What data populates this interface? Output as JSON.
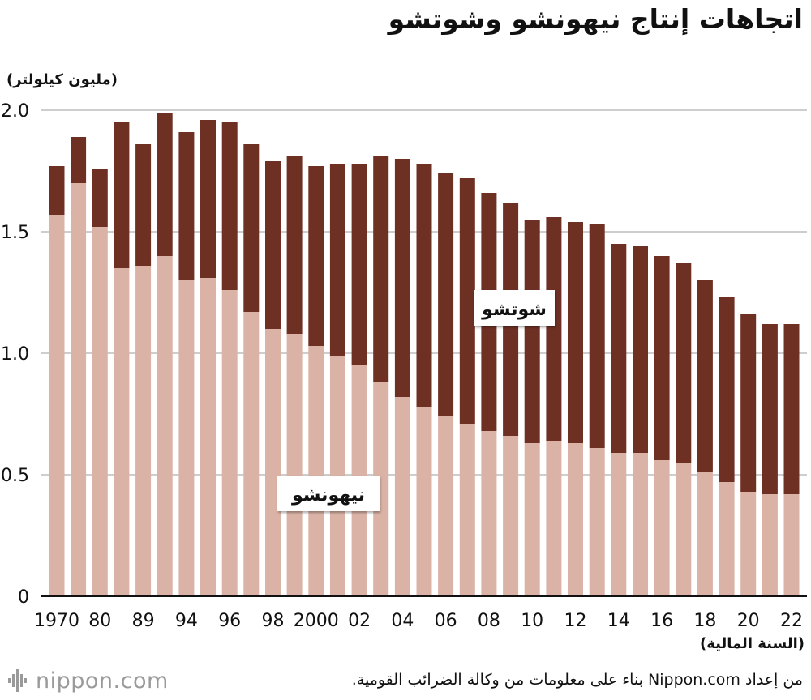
{
  "header": {
    "title": "اتجاهات إنتاج نيهونشو وشوتشو",
    "y_unit": "(مليون كيلولتر)",
    "x_unit": "(السنة المالية)"
  },
  "footer": {
    "logo_text": "nippon.com",
    "logo_icon": "sound-wave-icon",
    "source": "من إعداد Nippon.com بناء على معلومات من وكالة الضرائب القومية."
  },
  "colors": {
    "nihonshu": "#dbb3a6",
    "shochu": "#6f3024",
    "grid": "#bdbdbd",
    "axis": "#111111"
  },
  "chart_data": {
    "type": "bar",
    "stacked": true,
    "title": "اتجاهات إنتاج نيهونشو وشوتشو",
    "ylabel": "(مليون كيلولتر)",
    "xlabel": "(السنة المالية)",
    "ylim": [
      0,
      2.0
    ],
    "yticks": [
      0,
      0.5,
      1.0,
      1.5,
      2.0
    ],
    "ytick_labels": [
      "0",
      "0.5",
      "1.0",
      "1.5",
      "2.0"
    ],
    "grid": true,
    "tick_labels": [
      {
        "bar": 0,
        "label": "1970"
      },
      {
        "bar": 2,
        "label": "80"
      },
      {
        "bar": 4,
        "label": "89"
      },
      {
        "bar": 6,
        "label": "94"
      },
      {
        "bar": 8,
        "label": "96"
      },
      {
        "bar": 10,
        "label": "98"
      },
      {
        "bar": 12,
        "label": "2000"
      },
      {
        "bar": 14,
        "label": "02"
      },
      {
        "bar": 16,
        "label": "04"
      },
      {
        "bar": 18,
        "label": "06"
      },
      {
        "bar": 20,
        "label": "08"
      },
      {
        "bar": 22,
        "label": "10"
      },
      {
        "bar": 24,
        "label": "12"
      },
      {
        "bar": 26,
        "label": "14"
      },
      {
        "bar": 28,
        "label": "16"
      },
      {
        "bar": 30,
        "label": "18"
      },
      {
        "bar": 32,
        "label": "20"
      },
      {
        "bar": 34,
        "label": "22"
      }
    ],
    "series": [
      {
        "name": "نيهونشو",
        "color": "#dbb3a6",
        "values": [
          1.57,
          1.7,
          1.52,
          1.35,
          1.36,
          1.4,
          1.3,
          1.31,
          1.26,
          1.17,
          1.1,
          1.08,
          1.03,
          0.99,
          0.95,
          0.88,
          0.82,
          0.78,
          0.74,
          0.71,
          0.68,
          0.66,
          0.63,
          0.64,
          0.63,
          0.61,
          0.59,
          0.59,
          0.56,
          0.55,
          0.51,
          0.47,
          0.43,
          0.42,
          0.42
        ]
      },
      {
        "name": "شوتشو",
        "color": "#6f3024",
        "values": [
          0.2,
          0.19,
          0.24,
          0.6,
          0.5,
          0.59,
          0.61,
          0.65,
          0.69,
          0.69,
          0.69,
          0.73,
          0.74,
          0.79,
          0.83,
          0.93,
          0.98,
          1.0,
          1.0,
          1.01,
          0.98,
          0.96,
          0.92,
          0.92,
          0.91,
          0.92,
          0.86,
          0.85,
          0.84,
          0.82,
          0.79,
          0.76,
          0.73,
          0.7,
          0.7
        ]
      }
    ]
  }
}
